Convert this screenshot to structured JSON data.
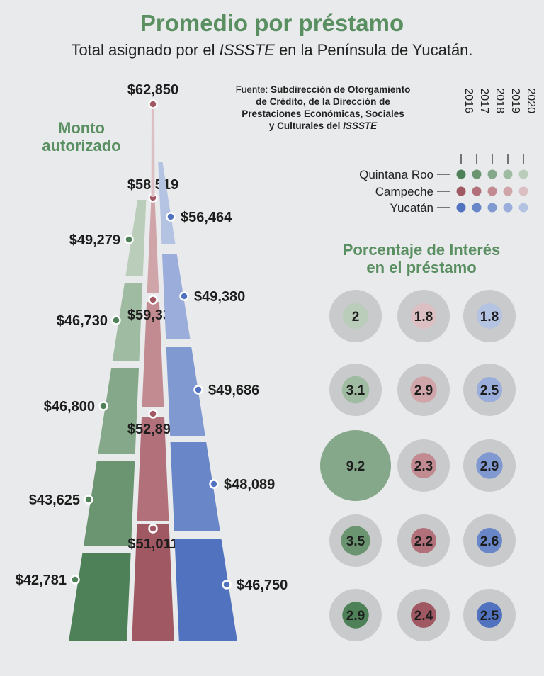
{
  "header": {
    "title": "Promedio por préstamo",
    "subtitle_pre": "Total asignado por el ",
    "subtitle_em": "ISSSTE",
    "subtitle_post": " en la Península de Yucatán."
  },
  "source": {
    "label": "Fuente: ",
    "line1": "Subdirección de Otorgamiento",
    "line2": "de Crédito, de la Dirección de",
    "line3": "Prestaciones Económicas, Sociales",
    "line4_pre": "y Culturales del ",
    "line4_em": "ISSSTE"
  },
  "section_titles": {
    "monto_line1": "Monto",
    "monto_line2": "autorizado",
    "interes_line1": "Porcentaje de Interés",
    "interes_line2": "en el préstamo"
  },
  "chart_data": [
    {
      "type": "bar",
      "title": "Monto autorizado",
      "categories": [
        "2016",
        "2017",
        "2018",
        "2019",
        "2020"
      ],
      "series": [
        {
          "name": "Quintana Roo",
          "values": [
            42781,
            43625,
            46800,
            46730,
            49279
          ],
          "labels": [
            "$42,781",
            "$43,625",
            "$46,800",
            "$46,730",
            "$49,279"
          ],
          "colors": [
            "#4e8158",
            "#6a9570",
            "#84a889",
            "#9fbba1",
            "#b9cdba"
          ]
        },
        {
          "name": "Campeche",
          "values": [
            51011,
            52892,
            59337,
            58519,
            62850
          ],
          "labels": [
            "$51,011",
            "$52,892",
            "$59,337",
            "$58,519",
            "$62,850"
          ],
          "colors": [
            "#a05962",
            "#b2717a",
            "#c28b92",
            "#d0a5aa",
            "#dcbfc2"
          ]
        },
        {
          "name": "Yucatán",
          "values": [
            46750,
            48089,
            49686,
            49380,
            56464
          ],
          "labels": [
            "$46,750",
            "$48,089",
            "$49,686",
            "$49,380",
            "$56,464"
          ],
          "colors": [
            "#5173bf",
            "#6886c8",
            "#8099d1",
            "#9badda",
            "#b5c3e3"
          ]
        }
      ]
    },
    {
      "type": "scatter",
      "title": "Porcentaje de Interés en el préstamo",
      "categories": [
        "2020",
        "2019",
        "2018",
        "2017",
        "2016"
      ],
      "series": [
        {
          "name": "Quintana Roo",
          "values": [
            2,
            3.1,
            9.2,
            3.5,
            2.9
          ],
          "labels": [
            "2",
            "3.1",
            "9.2",
            "3.5",
            "2.9"
          ],
          "colors": [
            "#b9cdba",
            "#9fbba1",
            "#84a889",
            "#6a9570",
            "#4e8158"
          ]
        },
        {
          "name": "Campeche",
          "values": [
            1.8,
            2.9,
            2.3,
            2.2,
            2.4
          ],
          "labels": [
            "1.8",
            "2.9",
            "2.3",
            "2.2",
            "2.4"
          ],
          "colors": [
            "#dcbfc2",
            "#d0a5aa",
            "#c28b92",
            "#b2717a",
            "#a05962"
          ]
        },
        {
          "name": "Yucatán",
          "values": [
            1.8,
            2.5,
            2.9,
            2.6,
            2.5
          ],
          "labels": [
            "1.8",
            "2.5",
            "2.9",
            "2.6",
            "2.5"
          ],
          "colors": [
            "#b5c3e3",
            "#9badda",
            "#8099d1",
            "#6886c8",
            "#5173bf"
          ]
        }
      ]
    }
  ],
  "legend": {
    "years": [
      "2016",
      "2017",
      "2018",
      "2019",
      "2020"
    ],
    "rows": [
      {
        "name": "Quintana Roo",
        "colors": [
          "#4e8158",
          "#6a9570",
          "#84a889",
          "#9fbba1",
          "#b9cdba"
        ]
      },
      {
        "name": "Campeche",
        "colors": [
          "#a05962",
          "#b2717a",
          "#c28b92",
          "#d0a5aa",
          "#dcbfc2"
        ]
      },
      {
        "name": "Yucatán",
        "colors": [
          "#5173bf",
          "#6886c8",
          "#8099d1",
          "#9badda",
          "#b5c3e3"
        ]
      }
    ]
  }
}
